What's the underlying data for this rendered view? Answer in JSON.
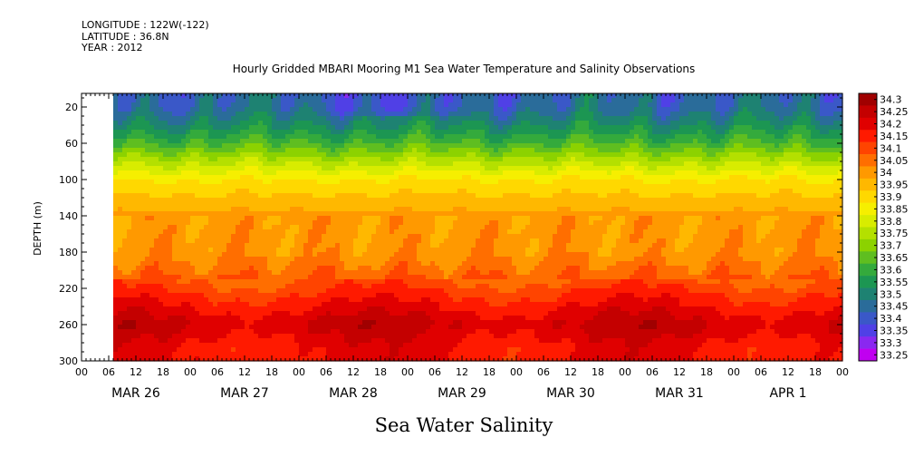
{
  "meta": {
    "longitude": "LONGITUDE : 122W(-122)",
    "latitude": "LATITUDE : 36.8N",
    "year": "YEAR : 2012"
  },
  "chart_data": {
    "type": "heatmap",
    "title": "Hourly Gridded MBARI Mooring M1 Sea Water Temperature and Salinity Observations",
    "xlabel": "Sea Water Salinity",
    "ylabel": "DEPTH (m)",
    "x_range_hours": [
      0,
      168
    ],
    "ylim": [
      300,
      5
    ],
    "y_ticks": [
      20,
      60,
      100,
      140,
      180,
      220,
      260,
      300
    ],
    "x_hour_ticks": [
      "00",
      "06",
      "12",
      "18",
      "00",
      "06",
      "12",
      "18",
      "00",
      "06",
      "12",
      "18",
      "00",
      "06",
      "12",
      "18",
      "00",
      "06",
      "12",
      "18",
      "00",
      "06",
      "12",
      "18",
      "00",
      "06",
      "12",
      "18",
      "00"
    ],
    "day_labels": [
      "MAR 26",
      "MAR 27",
      "MAR 28",
      "MAR 29",
      "MAR 30",
      "MAR 31",
      "APR  1"
    ],
    "data_start_hour": 7,
    "colorbar": {
      "levels": [
        "34.3",
        "34.25",
        "34.2",
        "34.15",
        "34.1",
        "34.05",
        "34",
        "33.95",
        "33.9",
        "33.85",
        "33.8",
        "33.75",
        "33.7",
        "33.65",
        "33.6",
        "33.55",
        "33.5",
        "33.45",
        "33.4",
        "33.35",
        "33.3",
        "33.25"
      ],
      "colors": [
        "#a00000",
        "#c40000",
        "#e00000",
        "#ff1a00",
        "#ff4400",
        "#ff6e00",
        "#ff9900",
        "#ffb800",
        "#ffd800",
        "#f6ef00",
        "#d8ec00",
        "#b4e000",
        "#8cd200",
        "#5fbe20",
        "#34aa3c",
        "#1c9652",
        "#1e8272",
        "#2a6c9a",
        "#3a58c8",
        "#5040e6",
        "#8a28f0",
        "#c000f0"
      ]
    },
    "profile": [
      {
        "depth": 5,
        "value": 33.46
      },
      {
        "depth": 20,
        "value": 33.47
      },
      {
        "depth": 40,
        "value": 33.55
      },
      {
        "depth": 60,
        "value": 33.65
      },
      {
        "depth": 80,
        "value": 33.78
      },
      {
        "depth": 100,
        "value": 33.9
      },
      {
        "depth": 120,
        "value": 33.96
      },
      {
        "depth": 140,
        "value": 34.02
      },
      {
        "depth": 180,
        "value": 34.03
      },
      {
        "depth": 210,
        "value": 34.1
      },
      {
        "depth": 240,
        "value": 34.2
      },
      {
        "depth": 260,
        "value": 34.26
      },
      {
        "depth": 285,
        "value": 34.2
      },
      {
        "depth": 300,
        "value": 34.2
      }
    ]
  }
}
